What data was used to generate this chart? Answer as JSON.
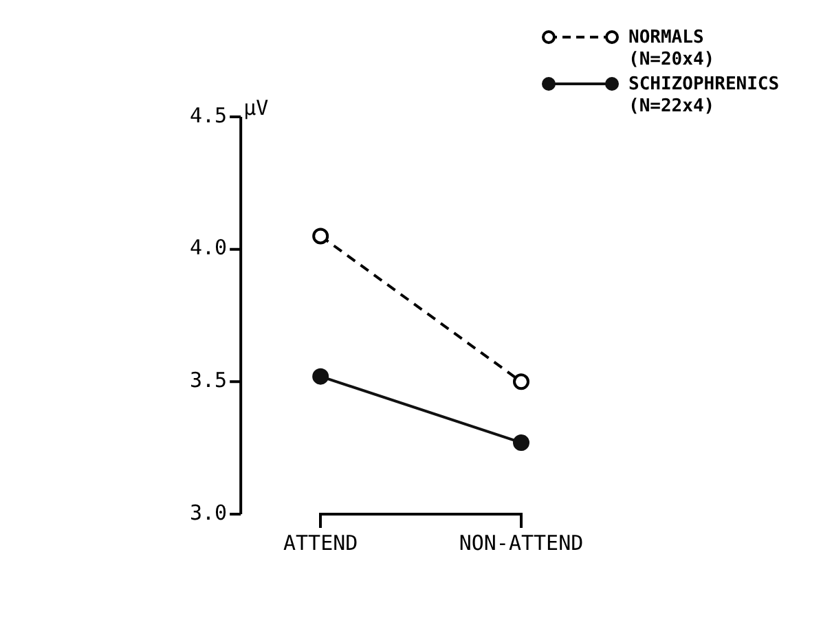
{
  "chart_data": {
    "type": "line",
    "ylabel": "µV",
    "categories": [
      "ATTEND",
      "NON-ATTEND"
    ],
    "series": [
      {
        "name": "NORMALS (N=20x4)",
        "color": "#000000",
        "values": [
          4.05,
          3.5
        ],
        "line_style": "dashed",
        "marker": "circle"
      },
      {
        "name": "SCHIZOPHRENICS (N=22x4)",
        "color": "#111111",
        "values": [
          3.52,
          3.27
        ],
        "line_style": "solid",
        "marker": "circle"
      }
    ],
    "ylim": [
      3.0,
      4.5
    ],
    "yticks": [
      {
        "value": 3.0,
        "label": "3.0"
      },
      {
        "value": 3.5,
        "label": "3.5"
      },
      {
        "value": 4.0,
        "label": "4.0"
      },
      {
        "value": 4.5,
        "label": "4.5"
      }
    ],
    "grid": false,
    "legend": "top right"
  }
}
